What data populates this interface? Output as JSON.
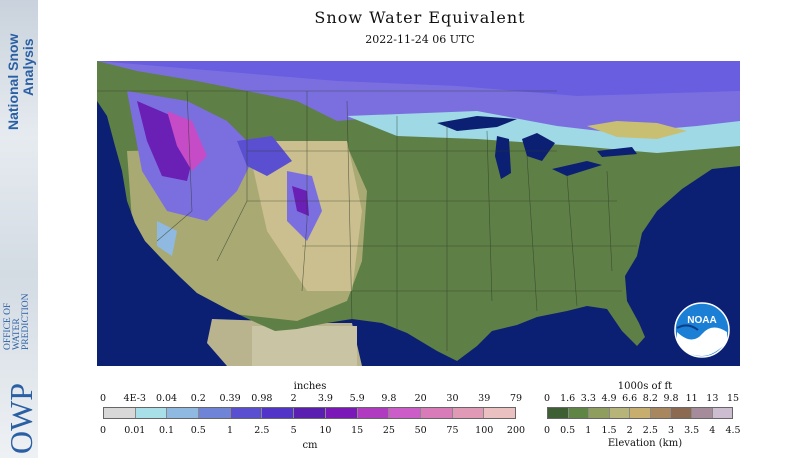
{
  "title": "Snow Water Equivalent",
  "datetime": "2022-11-24 06 UTC",
  "sidebar": {
    "org_line1": "National Snow",
    "org_line2": "Analysis",
    "owp_mark": "OWP",
    "office_lines": [
      "OFFICE OF",
      "WATER",
      "PREDICTION"
    ]
  },
  "noaa_logo_text": "NOAA",
  "colors": {
    "ocean": "#0b1f73",
    "land_low": "#5e7f45",
    "land_mid": "#a9a974",
    "land_high": "#cbbf8f",
    "snow_light": "#9fd9e6",
    "snow_mid": "#7b6fe0",
    "snow_heavy": "#6a1fb5",
    "snow_deep": "#c64bc6",
    "mexico": "#c9c4a4"
  },
  "swe_legend": {
    "top_unit": "inches",
    "bottom_unit": "cm",
    "inch_ticks": [
      "0",
      "4E-3",
      "0.04",
      "0.2",
      "0.39",
      "0.98",
      "2",
      "3.9",
      "5.9",
      "9.8",
      "20",
      "30",
      "39",
      "79"
    ],
    "cm_ticks": [
      "0",
      "0.01",
      "0.1",
      "0.5",
      "1",
      "2.5",
      "5",
      "10",
      "15",
      "25",
      "50",
      "75",
      "100",
      "200"
    ],
    "colors": [
      "#d8d8d8",
      "#a8dfe8",
      "#8fb9e0",
      "#6f84d6",
      "#5a4fd0",
      "#5334c8",
      "#5a1fb0",
      "#7a18b8",
      "#b03ac0",
      "#cc5cc8",
      "#d97ab9",
      "#e19ab5",
      "#eac0c0"
    ]
  },
  "elev_legend": {
    "top_unit": "1000s of ft",
    "bottom_unit": "Elevation (km)",
    "ft_ticks": [
      "0",
      "1.6",
      "3.3",
      "4.9",
      "6.6",
      "8.2",
      "9.8",
      "11",
      "13",
      "15"
    ],
    "km_ticks": [
      "0",
      "0.5",
      "1",
      "1.5",
      "2",
      "2.5",
      "3",
      "3.5",
      "4",
      "4.5"
    ],
    "colors": [
      "#3e5e33",
      "#5f8544",
      "#8f9e5e",
      "#b7b47a",
      "#c7ae6e",
      "#a9875e",
      "#8c6a52",
      "#a68c9a",
      "#cdbdd0"
    ]
  }
}
